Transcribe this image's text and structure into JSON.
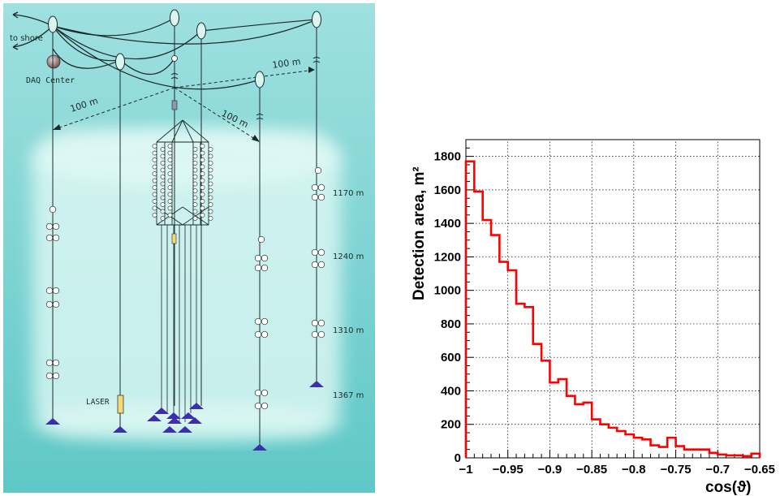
{
  "diagram": {
    "to_shore": "to shore",
    "daq_center": "DAQ Center",
    "laser": "LASER",
    "spacing_labels": [
      "100 m",
      "100 m",
      "100 m"
    ],
    "depths": [
      "1170 m",
      "1240 m",
      "1310 m",
      "1367 m"
    ],
    "colors": {
      "sea_top": "#9fe0e0",
      "sea_bottom": "#5fc8c6",
      "glow": "#e6fbf7",
      "anchor": "#3b2fb0",
      "buoy": "#d8f6ef",
      "laser_fill": "#f6d77a"
    }
  },
  "chart_data": {
    "type": "histogram",
    "ylabel": "Detection area, m²",
    "xlabel": "cos(ϑ)",
    "xlim": [
      -1,
      -0.65
    ],
    "ylim": [
      0,
      1900
    ],
    "xticks": [
      "−1",
      "−0.95",
      "−0.9",
      "−0.85",
      "−0.8",
      "−0.75",
      "−0.7",
      "−0.65"
    ],
    "yticks": [
      "0",
      "200",
      "400",
      "600",
      "800",
      "1000",
      "1200",
      "1400",
      "1600",
      "1800"
    ],
    "grid": true,
    "line_color": "#ff0000",
    "bin_width": 0.01,
    "bin_start": -1,
    "values": [
      1770,
      1590,
      1420,
      1330,
      1170,
      1120,
      920,
      900,
      680,
      580,
      450,
      470,
      370,
      320,
      330,
      230,
      200,
      180,
      160,
      140,
      120,
      110,
      75,
      65,
      120,
      70,
      50,
      50,
      50,
      30,
      20,
      15,
      15,
      10,
      25
    ]
  }
}
